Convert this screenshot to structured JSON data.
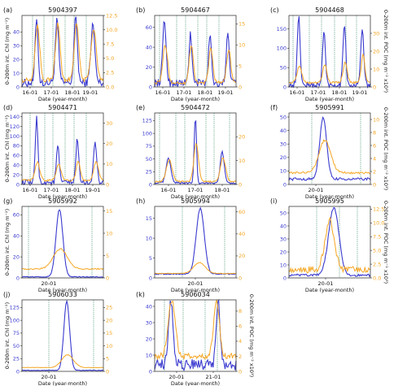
{
  "figure": {
    "left_axis_label": "0-200m int. Chl (mg m⁻²)",
    "right_axis_label": "0-200m int. POC (mg m⁻² x10³)",
    "x_axis_label": "Date (year-month)"
  },
  "colors": {
    "chl": "#3b3bd0",
    "poc": "#f5a623",
    "vline": "#3e8f6a",
    "axis": "#222222"
  },
  "chart_data": [
    {
      "panel": "(a)",
      "title": "5904397",
      "type": "line",
      "x_ticks": [
        "16-01",
        "17-01",
        "18-01",
        "19-01"
      ],
      "x_tick_pos": [
        0.1,
        0.36,
        0.62,
        0.84
      ],
      "vlines": [
        0.13,
        0.27,
        0.38,
        0.53,
        0.64,
        0.79
      ],
      "chl_ticks": [
        0,
        10,
        20,
        30,
        40
      ],
      "chl_range": [
        0,
        52
      ],
      "poc_ticks": [
        0.0,
        2.5,
        5.0,
        7.5,
        10.0,
        12.5
      ],
      "poc_range": [
        0,
        12.5
      ],
      "series": [
        {
          "name": "Chl",
          "axis": "left",
          "peaks": [
            [
              0.18,
              48,
              0.025
            ],
            [
              0.43,
              45,
              0.03
            ],
            [
              0.66,
              47,
              0.03
            ],
            [
              0.87,
              42,
              0.035
            ]
          ],
          "baseline": 3,
          "noise": 6
        },
        {
          "name": "POC",
          "axis": "right",
          "peaks": [
            [
              0.19,
              9.5,
              0.04
            ],
            [
              0.44,
              9.8,
              0.04
            ],
            [
              0.67,
              9.8,
              0.04
            ],
            [
              0.88,
              9.0,
              0.045
            ]
          ],
          "baseline": 1.2,
          "noise": 0.8
        }
      ]
    },
    {
      "panel": "(b)",
      "title": "5904467",
      "type": "line",
      "x_ticks": [
        "16-01",
        "17-01",
        "18-01",
        "19-01"
      ],
      "x_tick_pos": [
        0.1,
        0.36,
        0.62,
        0.87
      ],
      "vlines": [
        0.06,
        0.27,
        0.38,
        0.53,
        0.64,
        0.79
      ],
      "chl_ticks": [
        0,
        20,
        40,
        60
      ],
      "chl_range": [
        0,
        72
      ],
      "poc_ticks": [
        0,
        5,
        10,
        15
      ],
      "poc_range": [
        0,
        17
      ],
      "series": [
        {
          "name": "Chl",
          "axis": "left",
          "peaks": [
            [
              0.12,
              62,
              0.03
            ],
            [
              0.44,
              50,
              0.025
            ],
            [
              0.68,
              50,
              0.025
            ],
            [
              0.9,
              52,
              0.025
            ]
          ],
          "baseline": 4,
          "noise": 8
        },
        {
          "name": "POC",
          "axis": "right",
          "peaks": [
            [
              0.13,
              9,
              0.04
            ],
            [
              0.45,
              9,
              0.035
            ],
            [
              0.69,
              8,
              0.035
            ],
            [
              0.91,
              8,
              0.035
            ]
          ],
          "baseline": 1.0,
          "noise": 0.8
        }
      ]
    },
    {
      "panel": "(c)",
      "title": "5904468",
      "type": "line",
      "x_ticks": [
        "16-01",
        "17-01",
        "18-01",
        "19-01"
      ],
      "x_tick_pos": [
        0.1,
        0.36,
        0.62,
        0.87
      ],
      "vlines": [
        0.05,
        0.25,
        0.4,
        0.56,
        0.7,
        0.83
      ],
      "chl_ticks": [
        0,
        50,
        100,
        150
      ],
      "chl_range": [
        0,
        185
      ],
      "poc_ticks": [
        0,
        10,
        20,
        30
      ],
      "poc_range": [
        0,
        40
      ],
      "series": [
        {
          "name": "Chl",
          "axis": "left",
          "peaks": [
            [
              0.12,
              175,
              0.025
            ],
            [
              0.43,
              140,
              0.025
            ],
            [
              0.68,
              160,
              0.025
            ],
            [
              0.9,
              150,
              0.025
            ]
          ],
          "baseline": 5,
          "noise": 15
        },
        {
          "name": "POC",
          "axis": "right",
          "peaks": [
            [
              0.13,
              9,
              0.04
            ],
            [
              0.44,
              10,
              0.035
            ],
            [
              0.69,
              11,
              0.035
            ],
            [
              0.91,
              16,
              0.03
            ]
          ],
          "baseline": 2.5,
          "noise": 1.2
        }
      ]
    },
    {
      "panel": "(d)",
      "title": "5904471",
      "type": "line",
      "x_ticks": [
        "16-01",
        "17-01",
        "18-01",
        "19-01"
      ],
      "x_tick_pos": [
        0.1,
        0.36,
        0.62,
        0.87
      ],
      "vlines": [
        0.1,
        0.28,
        0.38,
        0.53,
        0.64,
        0.79
      ],
      "chl_ticks": [
        0,
        20,
        40,
        60,
        80,
        100,
        120,
        140
      ],
      "chl_range": [
        0,
        148
      ],
      "poc_ticks": [
        0,
        10,
        20,
        30
      ],
      "poc_range": [
        0,
        35
      ],
      "series": [
        {
          "name": "Chl",
          "axis": "left",
          "peaks": [
            [
              0.18,
              140,
              0.022
            ],
            [
              0.44,
              75,
              0.025
            ],
            [
              0.68,
              90,
              0.025
            ],
            [
              0.9,
              80,
              0.03
            ]
          ],
          "baseline": 4,
          "noise": 12
        },
        {
          "name": "POC",
          "axis": "right",
          "peaks": [
            [
              0.19,
              9,
              0.04
            ],
            [
              0.45,
              8,
              0.04
            ],
            [
              0.69,
              9,
              0.035
            ],
            [
              0.91,
              9,
              0.04
            ]
          ],
          "baseline": 2.0,
          "noise": 1.0
        }
      ]
    },
    {
      "panel": "(e)",
      "title": "5904472",
      "type": "line",
      "x_ticks": [
        "16-01",
        "17-01",
        "18-01"
      ],
      "x_tick_pos": [
        0.17,
        0.5,
        0.83
      ],
      "vlines": [
        0.06,
        0.26,
        0.37,
        0.63,
        0.73,
        0.92
      ],
      "chl_ticks": [
        0,
        25,
        50,
        75,
        100,
        125
      ],
      "chl_range": [
        0,
        140
      ],
      "poc_ticks": [
        0,
        10,
        20
      ],
      "poc_range": [
        0,
        30
      ],
      "series": [
        {
          "name": "Chl",
          "axis": "left",
          "peaks": [
            [
              0.17,
              48,
              0.04
            ],
            [
              0.5,
              130,
              0.02
            ],
            [
              0.83,
              60,
              0.035
            ]
          ],
          "baseline": 3,
          "noise": 4
        },
        {
          "name": "POC",
          "axis": "right",
          "peaks": [
            [
              0.18,
              9,
              0.05
            ],
            [
              0.51,
              16,
              0.04
            ],
            [
              0.84,
              10,
              0.045
            ]
          ],
          "baseline": 1.2,
          "noise": 0.6
        }
      ]
    },
    {
      "panel": "(f)",
      "title": "5905991",
      "type": "line",
      "x_ticks": [
        "20-01"
      ],
      "x_tick_pos": [
        0.33
      ],
      "vlines": [
        0.28,
        0.88
      ],
      "chl_ticks": [
        0,
        10,
        20,
        30,
        40,
        50
      ],
      "chl_range": [
        0,
        53
      ],
      "poc_ticks": [
        0,
        2,
        4,
        6,
        8,
        10
      ],
      "poc_range": [
        0,
        11
      ],
      "series": [
        {
          "name": "Chl",
          "axis": "left",
          "peaks": [
            [
              0.42,
              46,
              0.06
            ]
          ],
          "baseline": 4,
          "noise": 2
        },
        {
          "name": "POC",
          "axis": "right",
          "peaks": [
            [
              0.44,
              5,
              0.1
            ]
          ],
          "baseline": 1.8,
          "noise": 0.3
        }
      ]
    },
    {
      "panel": "(g)",
      "title": "5905992",
      "type": "line",
      "x_ticks": [
        "20-01"
      ],
      "x_tick_pos": [
        0.33
      ],
      "vlines": [
        0.08,
        0.86
      ],
      "chl_ticks": [
        0,
        20,
        40,
        60
      ],
      "chl_range": [
        0,
        68
      ],
      "poc_ticks": [
        0,
        5,
        10,
        15
      ],
      "poc_range": [
        0,
        16
      ],
      "series": [
        {
          "name": "Chl",
          "axis": "left",
          "peaks": [
            [
              0.46,
              64,
              0.06
            ]
          ],
          "baseline": 1,
          "noise": 1
        },
        {
          "name": "POC",
          "axis": "right",
          "peaks": [
            [
              0.47,
              4.5,
              0.12
            ]
          ],
          "baseline": 2.0,
          "noise": 0.3
        }
      ]
    },
    {
      "panel": "(h)",
      "title": "5905994",
      "type": "line",
      "x_ticks": [
        "20-01"
      ],
      "x_tick_pos": [
        0.5
      ],
      "vlines": [
        0.34,
        0.86
      ],
      "chl_ticks": [
        0,
        5,
        10,
        15
      ],
      "chl_range": [
        0,
        18
      ],
      "poc_ticks": [
        0,
        20,
        40,
        60
      ],
      "poc_range": [
        0,
        65
      ],
      "series": [
        {
          "name": "Chl",
          "axis": "left",
          "peaks": [
            [
              0.56,
              16.5,
              0.07
            ]
          ],
          "baseline": 1,
          "noise": 0.3
        },
        {
          "name": "POC",
          "axis": "right",
          "peaks": [
            [
              0.55,
              10,
              0.1
            ]
          ],
          "baseline": 4,
          "noise": 0.5
        }
      ]
    },
    {
      "panel": "(i)",
      "title": "5905995",
      "type": "line",
      "x_ticks": [
        "20-01"
      ],
      "x_tick_pos": [
        0.45
      ],
      "vlines": [
        0.34,
        0.62,
        0.84
      ],
      "chl_ticks": [
        0,
        10,
        20,
        30,
        40,
        50
      ],
      "chl_range": [
        0,
        55
      ],
      "poc_ticks": [
        0.0,
        2.5,
        5.0,
        7.5,
        10.0,
        12.5
      ],
      "poc_range": [
        0,
        13
      ],
      "series": [
        {
          "name": "Chl",
          "axis": "left",
          "peaks": [
            [
              0.55,
              52,
              0.09
            ]
          ],
          "baseline": 2,
          "noise": 2
        },
        {
          "name": "POC",
          "axis": "right",
          "peaks": [
            [
              0.5,
              9,
              0.08
            ]
          ],
          "baseline": 1.5,
          "noise": 1.2
        }
      ]
    },
    {
      "panel": "(j)",
      "title": "5906033",
      "type": "line",
      "x_ticks": [
        "20-01"
      ],
      "x_tick_pos": [
        0.33
      ],
      "vlines": [
        0.33,
        0.88
      ],
      "chl_ticks": [
        0,
        25,
        50,
        75,
        100,
        125
      ],
      "chl_range": [
        0,
        140
      ],
      "poc_ticks": [
        0,
        5,
        10,
        15,
        20,
        25
      ],
      "poc_range": [
        0,
        28
      ],
      "series": [
        {
          "name": "Chl",
          "axis": "left",
          "peaks": [
            [
              0.55,
              135,
              0.05
            ]
          ],
          "baseline": 2,
          "noise": 1
        },
        {
          "name": "POC",
          "axis": "right",
          "peaks": [
            [
              0.56,
              5,
              0.1
            ]
          ],
          "baseline": 1.5,
          "noise": 0.2
        }
      ]
    },
    {
      "panel": "(k)",
      "title": "5906034",
      "type": "line",
      "x_ticks": [
        "20-01",
        "21-01"
      ],
      "x_tick_pos": [
        0.27,
        0.72
      ],
      "vlines": [
        0.12,
        0.35,
        0.62,
        0.77
      ],
      "chl_ticks": [
        0,
        10,
        20,
        30,
        40
      ],
      "chl_range": [
        0,
        44
      ],
      "poc_ticks": [
        0,
        2,
        4,
        6,
        8
      ],
      "poc_range": [
        0,
        9.5
      ],
      "series": [
        {
          "name": "Chl",
          "axis": "left",
          "peaks": [
            [
              0.2,
              40,
              0.04
            ],
            [
              0.78,
              39,
              0.035
            ]
          ],
          "baseline": 4,
          "noise": 7
        },
        {
          "name": "POC",
          "axis": "right",
          "peaks": [
            [
              0.21,
              7.5,
              0.06
            ],
            [
              0.76,
              7.5,
              0.05
            ]
          ],
          "baseline": 2.0,
          "noise": 0.8
        }
      ]
    }
  ]
}
